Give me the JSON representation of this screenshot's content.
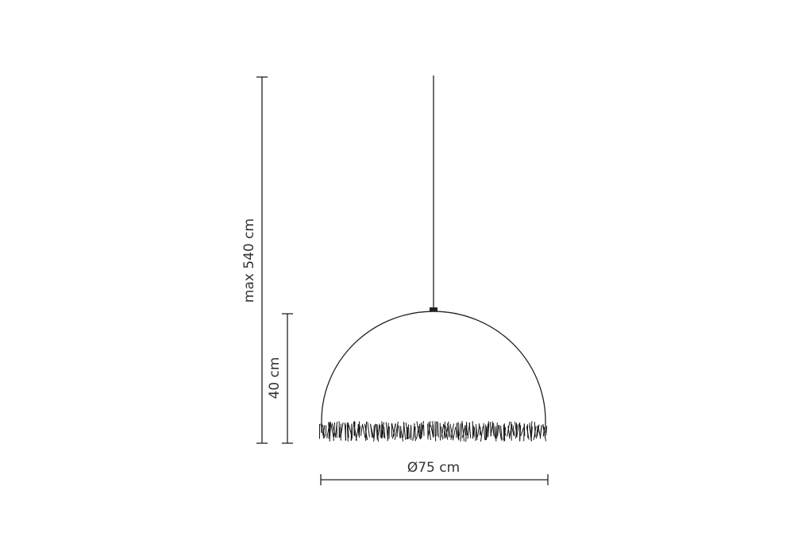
{
  "dimensions": {
    "total_height": "max 540 cm",
    "shade_height": "40 cm",
    "diameter": "Ø75 cm"
  },
  "line_color": "#222222"
}
